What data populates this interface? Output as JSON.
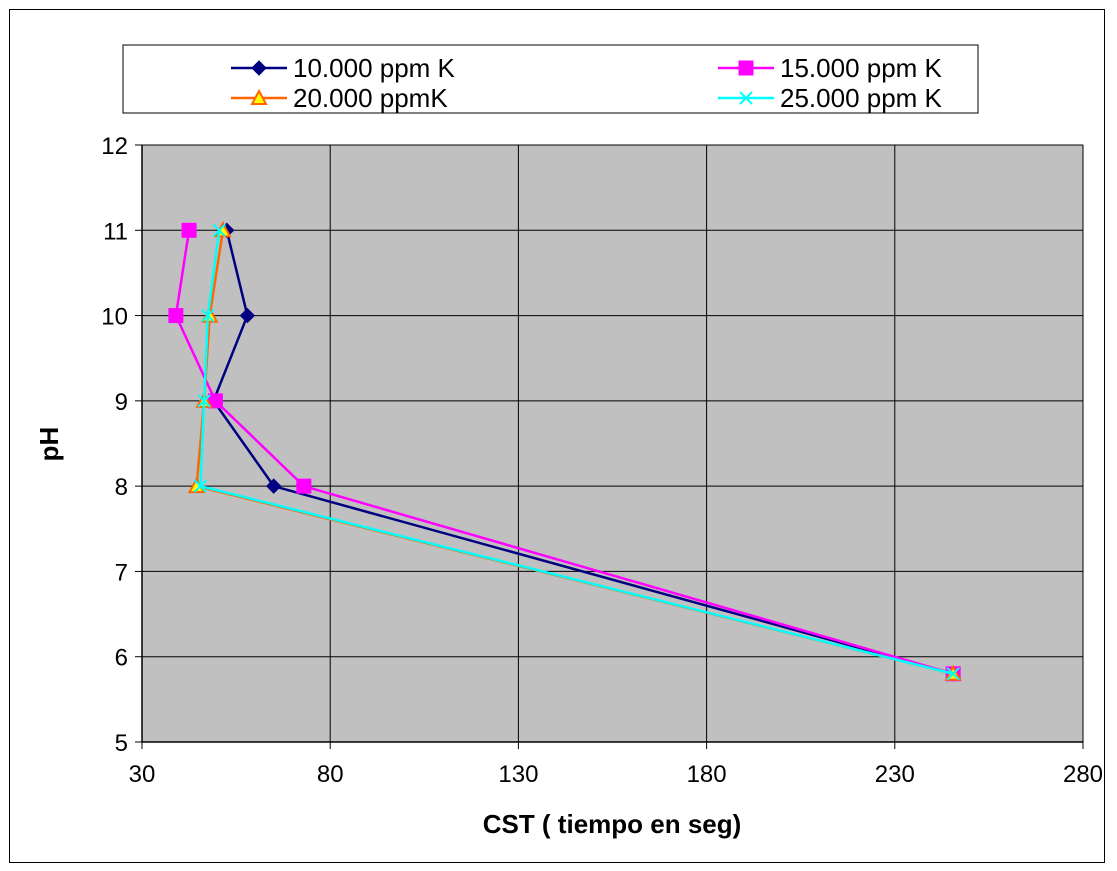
{
  "chart_data": {
    "type": "line",
    "title": "",
    "xlabel": "CST ( tiempo en seg)",
    "ylabel": "pH",
    "xlim": [
      30,
      280
    ],
    "ylim": [
      5,
      12
    ],
    "xticks": [
      30,
      80,
      130,
      180,
      230,
      280
    ],
    "yticks": [
      5,
      6,
      7,
      8,
      9,
      10,
      11,
      12
    ],
    "grid": true,
    "plot_background": "#C0C0C0",
    "legend_position": "top",
    "series": [
      {
        "name": "10.000 ppm K",
        "color": "#000080",
        "marker": "diamond",
        "points": [
          {
            "x": 245.5,
            "y": 5.8
          },
          {
            "x": 65,
            "y": 8
          },
          {
            "x": 49,
            "y": 9
          },
          {
            "x": 58,
            "y": 10
          },
          {
            "x": 52.5,
            "y": 11
          }
        ]
      },
      {
        "name": "15.000 ppm K",
        "color": "#FF00FF",
        "marker": "square",
        "points": [
          {
            "x": 245.5,
            "y": 5.8
          },
          {
            "x": 73,
            "y": 8
          },
          {
            "x": 49.5,
            "y": 9
          },
          {
            "x": 39,
            "y": 10
          },
          {
            "x": 42.5,
            "y": 11
          }
        ]
      },
      {
        "name": "20.000 ppmK",
        "color": "#FF6600",
        "marker": "triangle",
        "points": [
          {
            "x": 245.5,
            "y": 5.8
          },
          {
            "x": 44.5,
            "y": 8
          },
          {
            "x": 46.5,
            "y": 9
          },
          {
            "x": 48,
            "y": 10
          },
          {
            "x": 51.5,
            "y": 11
          }
        ]
      },
      {
        "name": "25.000 ppm K",
        "color": "#00FFFF",
        "marker": "x",
        "points": [
          {
            "x": 245.5,
            "y": 5.8
          },
          {
            "x": 45.5,
            "y": 8
          },
          {
            "x": 46.5,
            "y": 9
          },
          {
            "x": 47.5,
            "y": 10
          },
          {
            "x": 50.5,
            "y": 11
          }
        ]
      }
    ]
  }
}
